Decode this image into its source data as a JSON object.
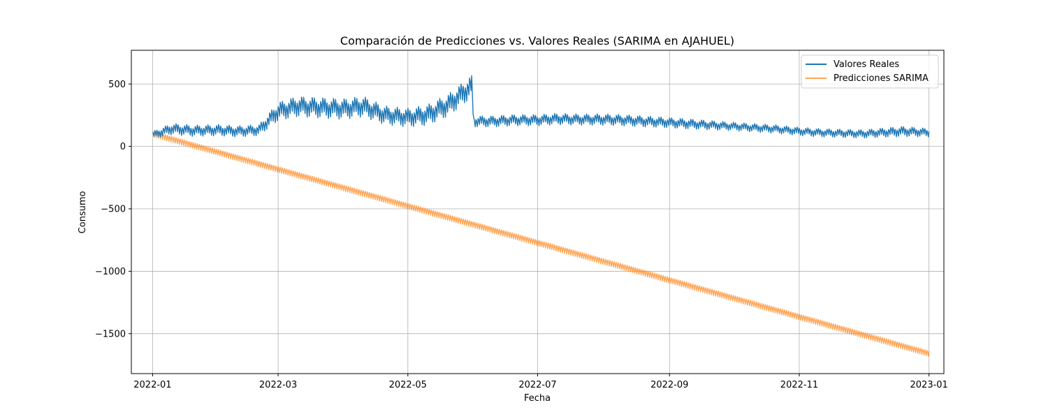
{
  "chart_data": {
    "type": "line",
    "title": "Comparación de Predicciones vs. Valores Reales (SARIMA en AJAHUEL)",
    "xlabel": "Fecha",
    "ylabel": "Consumo",
    "xlim": [
      "2021-12-22",
      "2023-01-08"
    ],
    "ylim": [
      -1820,
      770
    ],
    "x_ticks": [
      "2022-01",
      "2022-03",
      "2022-05",
      "2022-07",
      "2022-09",
      "2022-11",
      "2023-01"
    ],
    "x_tick_dates": [
      "2022-01-01",
      "2022-03-01",
      "2022-05-01",
      "2022-07-01",
      "2022-09-01",
      "2022-11-01",
      "2023-01-01"
    ],
    "y_ticks": [
      500,
      0,
      -500,
      -1000,
      -1500
    ],
    "y_tick_labels": [
      "500",
      "0",
      "−500",
      "−1000",
      "−1500"
    ],
    "grid": true,
    "legend_position": "upper right",
    "series": [
      {
        "name": "Valores Reales",
        "color": "#1f77b4",
        "x": [
          "2022-01-01",
          "2022-01-10",
          "2022-01-20",
          "2022-02-01",
          "2022-02-10",
          "2022-02-20",
          "2022-03-01",
          "2022-03-10",
          "2022-03-20",
          "2022-04-01",
          "2022-04-10",
          "2022-04-20",
          "2022-05-01",
          "2022-05-10",
          "2022-05-20",
          "2022-05-31",
          "2022-06-01",
          "2022-06-10",
          "2022-06-20",
          "2022-07-01",
          "2022-07-10",
          "2022-07-20",
          "2022-08-01",
          "2022-08-10",
          "2022-08-20",
          "2022-09-01",
          "2022-09-10",
          "2022-09-20",
          "2022-10-01",
          "2022-10-10",
          "2022-10-20",
          "2022-11-01",
          "2022-11-10",
          "2022-11-20",
          "2022-12-01",
          "2022-12-10",
          "2022-12-20",
          "2023-01-01"
        ],
        "values": [
          90,
          140,
          125,
          130,
          120,
          130,
          280,
          320,
          310,
          300,
          320,
          250,
          230,
          250,
          330,
          480,
          200,
          200,
          210,
          210,
          220,
          215,
          215,
          210,
          200,
          190,
          180,
          170,
          160,
          150,
          140,
          120,
          110,
          105,
          100,
          110,
          120,
          110
        ],
        "spread": [
          40,
          60,
          60,
          60,
          60,
          60,
          100,
          110,
          110,
          110,
          110,
          100,
          100,
          110,
          120,
          120,
          60,
          60,
          60,
          60,
          60,
          60,
          60,
          60,
          60,
          55,
          55,
          50,
          45,
          45,
          45,
          45,
          45,
          45,
          45,
          50,
          55,
          45
        ]
      },
      {
        "name": "Predicciones SARIMA",
        "color": "#ff7f0e",
        "x": [
          "2022-01-01",
          "2023-01-01"
        ],
        "values": [
          100,
          -1660
        ],
        "spread": [
          45,
          45
        ]
      }
    ]
  }
}
